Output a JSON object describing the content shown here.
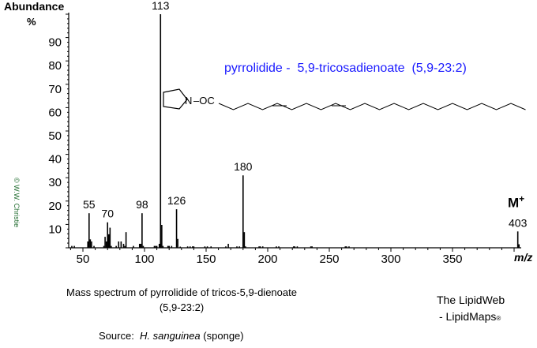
{
  "chart_data": {
    "type": "bar",
    "title": "pyrrolidide -  5,9-tricosadienoate  (5,9-23:2)",
    "ylabel": "Abundance",
    "ylabel_unit": "%",
    "xlabel": "m/z",
    "xlim": [
      40,
      405
    ],
    "ylim": [
      0,
      100
    ],
    "xticks": [
      50,
      100,
      150,
      200,
      250,
      300,
      350
    ],
    "yticks": [
      10,
      20,
      30,
      40,
      50,
      60,
      70,
      80,
      90
    ],
    "grid": false,
    "peaks": [
      {
        "mz": 41,
        "value": 0.8
      },
      {
        "mz": 43,
        "value": 0.8
      },
      {
        "mz": 54,
        "value": 2.7
      },
      {
        "mz": 55,
        "value": 14.8,
        "label": "55"
      },
      {
        "mz": 56,
        "value": 3.6
      },
      {
        "mz": 57,
        "value": 2.7
      },
      {
        "mz": 59,
        "value": 0.8
      },
      {
        "mz": 67,
        "value": 0.8
      },
      {
        "mz": 68,
        "value": 4.7
      },
      {
        "mz": 69,
        "value": 2.7
      },
      {
        "mz": 70,
        "value": 10.9,
        "label": "70"
      },
      {
        "mz": 71,
        "value": 5.8
      },
      {
        "mz": 72,
        "value": 8.6
      },
      {
        "mz": 73,
        "value": 0.8
      },
      {
        "mz": 77,
        "value": 0.8
      },
      {
        "mz": 79,
        "value": 2.7
      },
      {
        "mz": 81,
        "value": 2.7
      },
      {
        "mz": 83,
        "value": 1.7
      },
      {
        "mz": 84,
        "value": 0.8
      },
      {
        "mz": 85,
        "value": 6.7
      },
      {
        "mz": 91,
        "value": 0.8
      },
      {
        "mz": 96,
        "value": 1.7
      },
      {
        "mz": 97,
        "value": 1.7
      },
      {
        "mz": 98,
        "value": 14.8,
        "label": "98"
      },
      {
        "mz": 99,
        "value": 0.8
      },
      {
        "mz": 108,
        "value": 0.8
      },
      {
        "mz": 109,
        "value": 0.8
      },
      {
        "mz": 110,
        "value": 0.8
      },
      {
        "mz": 112,
        "value": 1.7
      },
      {
        "mz": 113,
        "value": 100,
        "label": "113"
      },
      {
        "mz": 114,
        "value": 9.8
      },
      {
        "mz": 115,
        "value": 0.8
      },
      {
        "mz": 119,
        "value": 0.8
      },
      {
        "mz": 120,
        "value": 0.8
      },
      {
        "mz": 122,
        "value": 0.8
      },
      {
        "mz": 126,
        "value": 16.5,
        "label": "126"
      },
      {
        "mz": 127,
        "value": 3.8
      },
      {
        "mz": 129,
        "value": 0.5
      },
      {
        "mz": 135,
        "value": 0.6
      },
      {
        "mz": 137,
        "value": 0.6
      },
      {
        "mz": 139,
        "value": 0.6
      },
      {
        "mz": 140,
        "value": 0.6
      },
      {
        "mz": 149,
        "value": 0.6
      },
      {
        "mz": 151,
        "value": 0.6
      },
      {
        "mz": 154,
        "value": 0.6
      },
      {
        "mz": 166,
        "value": 0.6
      },
      {
        "mz": 168,
        "value": 1.7
      },
      {
        "mz": 175,
        "value": 0.6
      },
      {
        "mz": 177,
        "value": 0.6
      },
      {
        "mz": 180,
        "value": 31,
        "label": "180"
      },
      {
        "mz": 181,
        "value": 6.7
      },
      {
        "mz": 182,
        "value": 0.6
      },
      {
        "mz": 193,
        "value": 0.6
      },
      {
        "mz": 194,
        "value": 0.6
      },
      {
        "mz": 196,
        "value": 0.6
      },
      {
        "mz": 207,
        "value": 0.6
      },
      {
        "mz": 209,
        "value": 0.6
      },
      {
        "mz": 221,
        "value": 0.6
      },
      {
        "mz": 222,
        "value": 0.6
      },
      {
        "mz": 224,
        "value": 0.6
      },
      {
        "mz": 235,
        "value": 0.6
      },
      {
        "mz": 236,
        "value": 0.6
      },
      {
        "mz": 263,
        "value": 0.6
      },
      {
        "mz": 264,
        "value": 0.6
      },
      {
        "mz": 266,
        "value": 0.6
      },
      {
        "mz": 403,
        "value": 7,
        "label": "403"
      },
      {
        "mz": 404,
        "value": 1.5
      }
    ],
    "annotations": {
      "molecular_ion": "M",
      "molecular_ion_sup": "+"
    },
    "structure": {
      "head": "N",
      "link": "–OC"
    }
  },
  "caption": {
    "line1": "Mass spectrum of pyrrolidide of tricos-5,9-dienoate",
    "line2": "(5,9-23:2)",
    "source_label": "Source:",
    "source_species": "H. sanguinea",
    "source_note": "(sponge)"
  },
  "branding": {
    "line1": "The LipidWeb",
    "line2": "- LipidMaps",
    "mark": "®"
  },
  "copyright": "© W.W. Christie",
  "colors": {
    "title": "#1a1aff",
    "copyright": "#1f6b2e",
    "peaks": "#000000"
  }
}
